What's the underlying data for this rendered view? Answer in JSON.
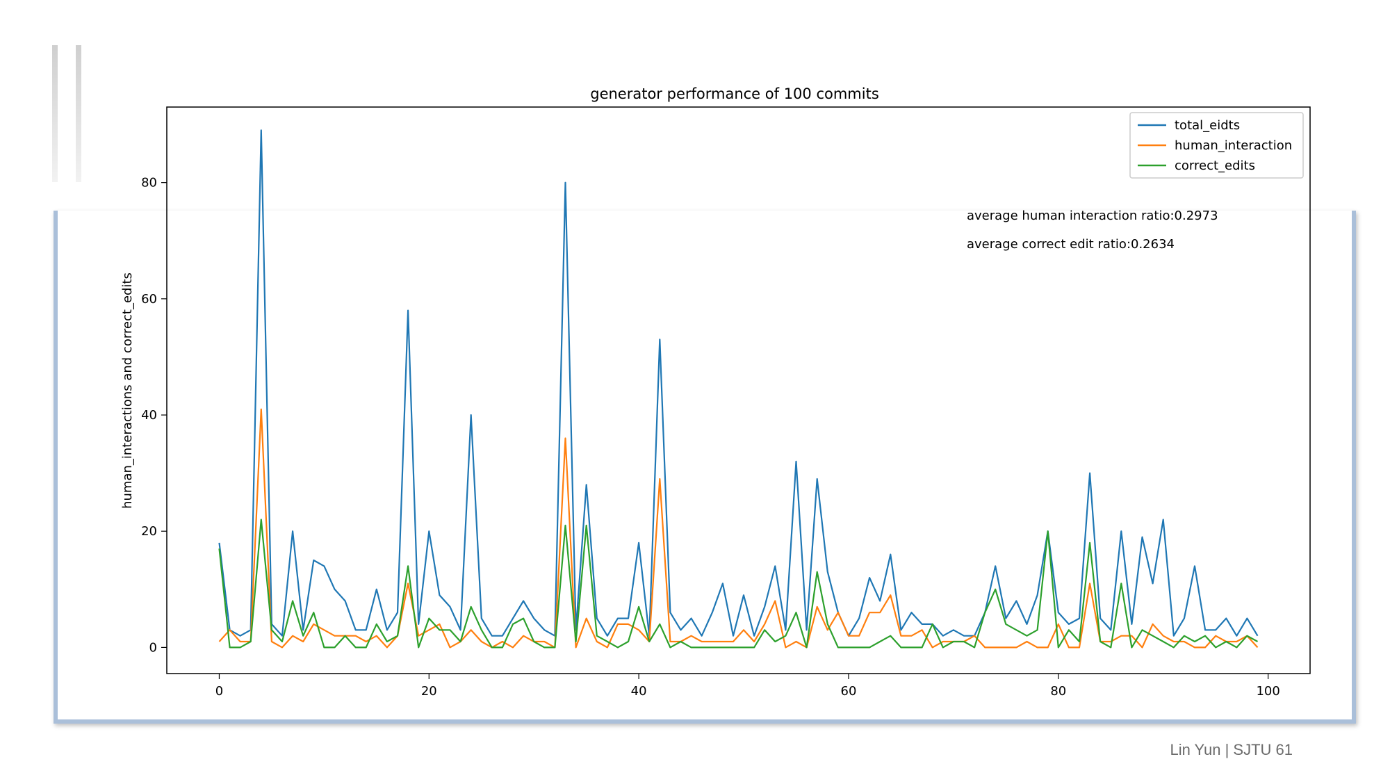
{
  "footer": {
    "text": "Lin Yun | SJTU 61"
  },
  "chart_data": {
    "type": "line",
    "title": "generator performance of 100 commits",
    "xlabel": "",
    "ylabel": "human_interactions and correct_edits",
    "xlim": [
      -5,
      104
    ],
    "ylim": [
      -4.5,
      93
    ],
    "xticks": [
      0,
      20,
      40,
      60,
      80,
      100
    ],
    "yticks": [
      0,
      20,
      40,
      60,
      80
    ],
    "grid": false,
    "legend": "top-right",
    "annotations": [
      "average human interaction ratio:0.2973",
      "average correct edit ratio:0.2634"
    ],
    "series": [
      {
        "name": "total_eidts",
        "color": "#1f77b4",
        "values": [
          18,
          3,
          2,
          3,
          89,
          4,
          2,
          20,
          3,
          15,
          14,
          10,
          8,
          3,
          3,
          10,
          3,
          6,
          58,
          4,
          20,
          9,
          7,
          3,
          40,
          5,
          2,
          2,
          5,
          8,
          5,
          3,
          2,
          80,
          3,
          28,
          5,
          2,
          5,
          5,
          18,
          2,
          53,
          6,
          3,
          5,
          2,
          6,
          11,
          2,
          9,
          2,
          7,
          14,
          3,
          32,
          3,
          29,
          13,
          6,
          2,
          5,
          12,
          8,
          16,
          3,
          6,
          4,
          4,
          2,
          3,
          2,
          2,
          6,
          14,
          5,
          8,
          4,
          9,
          20,
          6,
          4,
          5,
          30,
          5,
          3,
          20,
          4,
          19,
          11,
          22,
          2,
          5,
          14,
          3,
          3,
          5,
          2,
          5,
          2
        ]
      },
      {
        "name": "human_interaction",
        "color": "#ff7f0e",
        "values": [
          1,
          3,
          1,
          1,
          41,
          1,
          0,
          2,
          1,
          4,
          3,
          2,
          2,
          2,
          1,
          2,
          0,
          2,
          11,
          2,
          3,
          4,
          0,
          1,
          3,
          1,
          0,
          1,
          0,
          2,
          1,
          1,
          0,
          36,
          0,
          5,
          1,
          0,
          4,
          4,
          3,
          1,
          29,
          1,
          1,
          2,
          1,
          1,
          1,
          1,
          3,
          1,
          4,
          8,
          0,
          1,
          0,
          7,
          3,
          6,
          2,
          2,
          6,
          6,
          9,
          2,
          2,
          3,
          0,
          1,
          1,
          1,
          2,
          0,
          0,
          0,
          0,
          1,
          0,
          0,
          4,
          0,
          0,
          11,
          1,
          1,
          2,
          2,
          0,
          4,
          2,
          1,
          1,
          0,
          0,
          2,
          1,
          1,
          2,
          0
        ]
      },
      {
        "name": "correct_edits",
        "color": "#2ca02c",
        "values": [
          17,
          0,
          0,
          1,
          22,
          3,
          1,
          8,
          2,
          6,
          0,
          0,
          2,
          0,
          0,
          4,
          1,
          2,
          14,
          0,
          5,
          3,
          3,
          1,
          7,
          3,
          0,
          0,
          4,
          5,
          1,
          0,
          0,
          21,
          1,
          21,
          2,
          1,
          0,
          1,
          7,
          1,
          4,
          0,
          1,
          0,
          0,
          0,
          0,
          0,
          0,
          0,
          3,
          1,
          2,
          6,
          0,
          13,
          4,
          0,
          0,
          0,
          0,
          1,
          2,
          0,
          0,
          0,
          4,
          0,
          1,
          1,
          0,
          6,
          10,
          4,
          3,
          2,
          3,
          20,
          0,
          3,
          1,
          18,
          1,
          0,
          11,
          0,
          3,
          2,
          1,
          0,
          2,
          1,
          2,
          0,
          1,
          0,
          2,
          1
        ]
      }
    ]
  }
}
